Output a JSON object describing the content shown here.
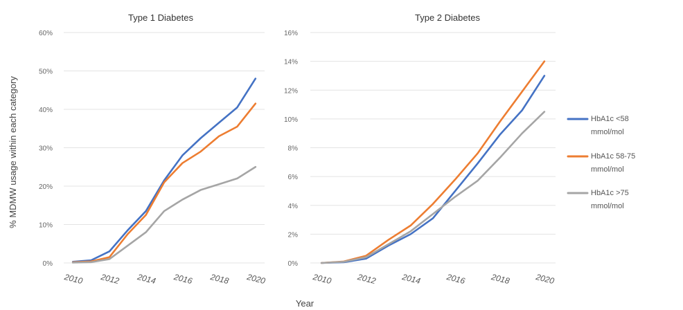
{
  "figure": {
    "xlabel": "Year",
    "ylabel": "% MDMW usage within each category"
  },
  "legend": [
    {
      "label_line1": "HbA1c <58",
      "label_line2": "mmol/mol",
      "color": "#4472C4"
    },
    {
      "label_line1": "HbA1c 58-75",
      "label_line2": "mmol/mol",
      "color": "#ED7D31"
    },
    {
      "label_line1": "HbA1c >75",
      "label_line2": "mmol/mol",
      "color": "#A5A5A5"
    }
  ],
  "chart_data": [
    {
      "type": "line",
      "title": "Type 1 Diabetes",
      "xlabel": "Year",
      "ylabel": "% MDMW usage within each category",
      "x": [
        2010,
        2011,
        2012,
        2013,
        2014,
        2015,
        2016,
        2017,
        2018,
        2019,
        2020
      ],
      "xlim": [
        2009.5,
        2020.5
      ],
      "xticks": [
        "2010",
        "2012",
        "2014",
        "2016",
        "2018",
        "2020"
      ],
      "ylim": [
        0,
        60
      ],
      "yticks": [
        "0%",
        "10%",
        "20%",
        "30%",
        "40%",
        "50%",
        "60%"
      ],
      "grid": true,
      "series": [
        {
          "name": "HbA1c <58 mmol/mol",
          "color": "#4472C4",
          "values": [
            0.3,
            0.7,
            3.0,
            8.5,
            13.5,
            21.5,
            28.0,
            32.5,
            36.5,
            40.5,
            48.0
          ]
        },
        {
          "name": "HbA1c 58-75 mmol/mol",
          "color": "#ED7D31",
          "values": [
            0.2,
            0.4,
            1.5,
            7.5,
            12.5,
            21.0,
            26.0,
            29.0,
            33.0,
            35.5,
            41.5
          ]
        },
        {
          "name": "HbA1c >75 mmol/mol",
          "color": "#A5A5A5",
          "values": [
            0.1,
            0.2,
            1.0,
            4.5,
            8.0,
            13.5,
            16.5,
            19.0,
            20.5,
            22.0,
            25.0
          ]
        }
      ]
    },
    {
      "type": "line",
      "title": "Type 2 Diabetes",
      "xlabel": "Year",
      "ylabel": "",
      "x": [
        2010,
        2011,
        2012,
        2013,
        2014,
        2015,
        2016,
        2017,
        2018,
        2019,
        2020
      ],
      "xlim": [
        2009.5,
        2020.5
      ],
      "xticks": [
        "2010",
        "2012",
        "2014",
        "2016",
        "2018",
        "2020"
      ],
      "ylim": [
        0,
        16
      ],
      "yticks": [
        "0%",
        "2%",
        "4%",
        "6%",
        "8%",
        "10%",
        "12%",
        "14%",
        "16%"
      ],
      "grid": true,
      "series": [
        {
          "name": "HbA1c <58 mmol/mol",
          "color": "#4472C4",
          "values": [
            0.0,
            0.05,
            0.3,
            1.2,
            2.0,
            3.1,
            5.0,
            6.9,
            8.9,
            10.6,
            13.0
          ]
        },
        {
          "name": "HbA1c 58-75 mmol/mol",
          "color": "#ED7D31",
          "values": [
            0.0,
            0.1,
            0.5,
            1.6,
            2.6,
            4.1,
            5.8,
            7.6,
            9.8,
            11.9,
            14.0
          ]
        },
        {
          "name": "HbA1c >75 mmol/mol",
          "color": "#A5A5A5",
          "values": [
            0.0,
            0.08,
            0.4,
            1.3,
            2.2,
            3.4,
            4.6,
            5.7,
            7.3,
            9.0,
            10.5
          ]
        }
      ]
    }
  ]
}
